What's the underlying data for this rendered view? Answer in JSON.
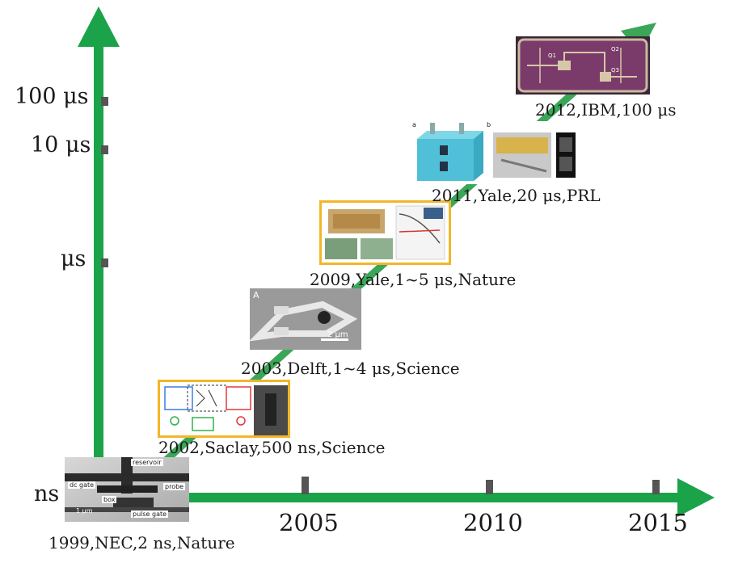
{
  "axes": {
    "color": "#1ba34a",
    "y_ticks": [
      "100 μs",
      "10 μs",
      "μs",
      "ns"
    ],
    "x_ticks": [
      "2005",
      "2010",
      "2015"
    ]
  },
  "milestones": [
    {
      "caption": "1999,NEC,2 ns,Nature",
      "inset_labels": [
        "reservoir",
        "dc gate",
        "probe",
        "box",
        "1 μm",
        "pulse gate"
      ]
    },
    {
      "caption": "2002,Saclay,500 ns,Science"
    },
    {
      "caption": "2003,Delft,1~4 μs,Science",
      "inset_labels": [
        "A",
        "2 μm"
      ]
    },
    {
      "caption": "2009,Yale,1~5 μs,Nature"
    },
    {
      "caption": "2011,Yale,20 μs,PRL",
      "inset_labels": [
        "a",
        "b"
      ]
    },
    {
      "caption": "2012,IBM,100 μs",
      "inset_labels": [
        "Q1",
        "Q2",
        "Q3"
      ]
    }
  ],
  "colors": {
    "highlight_frame": "#f2b629",
    "trend": "#3aa657"
  }
}
